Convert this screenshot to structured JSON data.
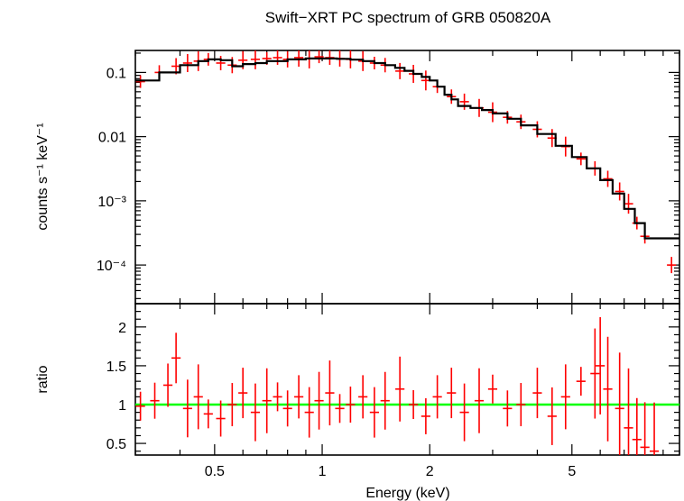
{
  "chart_data": [
    {
      "type": "scatter",
      "title": "Swift−XRT PC spectrum of GRB 050820A",
      "ylabel": "counts s⁻¹ keV⁻¹",
      "xscale": "log",
      "yscale": "log",
      "xlim": [
        0.3,
        10
      ],
      "ylim": [
        2.5e-05,
        0.22
      ],
      "yticks": [
        {
          "value": 0.1,
          "label": "0.1"
        },
        {
          "value": 0.01,
          "label": "0.01"
        },
        {
          "value": 0.001,
          "label": "10⁻³"
        },
        {
          "value": 0.0001,
          "label": "10⁻⁴"
        }
      ],
      "colors": {
        "data": "#ff0000",
        "model": "#000000"
      },
      "series": [
        {
          "kind": "data-with-errorbars",
          "x": [
            0.31,
            0.35,
            0.39,
            0.42,
            0.45,
            0.48,
            0.52,
            0.56,
            0.6,
            0.65,
            0.7,
            0.75,
            0.8,
            0.86,
            0.92,
            0.98,
            1.05,
            1.12,
            1.2,
            1.3,
            1.4,
            1.5,
            1.65,
            1.8,
            1.95,
            2.1,
            2.3,
            2.5,
            2.75,
            3.0,
            3.3,
            3.6,
            4.0,
            4.4,
            4.8,
            5.3,
            5.8,
            6.3,
            6.8,
            7.2,
            7.6,
            8.0,
            9.5
          ],
          "y": [
            0.072,
            0.1,
            0.125,
            0.14,
            0.15,
            0.16,
            0.14,
            0.13,
            0.155,
            0.16,
            0.165,
            0.17,
            0.16,
            0.17,
            0.165,
            0.175,
            0.17,
            0.165,
            0.16,
            0.15,
            0.14,
            0.13,
            0.105,
            0.095,
            0.075,
            0.06,
            0.042,
            0.035,
            0.028,
            0.024,
            0.02,
            0.017,
            0.013,
            0.0095,
            0.007,
            0.0045,
            0.0032,
            0.0022,
            0.0014,
            0.0009,
            0.00045,
            0.00028,
            0.0001
          ]
        },
        {
          "kind": "model-step",
          "x": [
            0.3,
            0.35,
            0.4,
            0.45,
            0.48,
            0.52,
            0.56,
            0.6,
            0.65,
            0.7,
            0.8,
            0.9,
            1.0,
            1.1,
            1.2,
            1.3,
            1.4,
            1.5,
            1.6,
            1.7,
            1.8,
            1.9,
            2.0,
            2.1,
            2.2,
            2.3,
            2.4,
            2.6,
            2.8,
            3.0,
            3.3,
            3.6,
            4.0,
            4.5,
            5.0,
            5.5,
            6.0,
            6.5,
            7.0,
            7.5,
            8.0,
            8.5,
            9.0,
            10.0
          ],
          "y": [
            0.075,
            0.1,
            0.13,
            0.15,
            0.16,
            0.155,
            0.125,
            0.135,
            0.14,
            0.15,
            0.16,
            0.165,
            0.165,
            0.163,
            0.158,
            0.15,
            0.14,
            0.13,
            0.118,
            0.106,
            0.095,
            0.085,
            0.075,
            0.06,
            0.045,
            0.038,
            0.03,
            0.028,
            0.026,
            0.023,
            0.019,
            0.015,
            0.011,
            0.0072,
            0.0048,
            0.0032,
            0.0021,
            0.0013,
            0.00075,
            0.00045,
            0.00026,
            0.00026,
            0.00026,
            0.00026
          ]
        }
      ]
    },
    {
      "type": "scatter",
      "title": "",
      "xlabel": "Energy (keV)",
      "ylabel": "ratio",
      "xscale": "log",
      "yscale": "linear",
      "xlim": [
        0.3,
        10
      ],
      "ylim": [
        0.35,
        2.3
      ],
      "xticks": [
        {
          "value": 0.5,
          "label": "0.5"
        },
        {
          "value": 1,
          "label": "1"
        },
        {
          "value": 2,
          "label": "2"
        },
        {
          "value": 5,
          "label": "5"
        }
      ],
      "yticks": [
        {
          "value": 0.5,
          "label": "0.5"
        },
        {
          "value": 1,
          "label": "1"
        },
        {
          "value": 1.5,
          "label": "1.5"
        },
        {
          "value": 2,
          "label": "2"
        }
      ],
      "reference_line": {
        "y": 1,
        "color": "#00ff00"
      },
      "colors": {
        "data": "#ff0000"
      },
      "series": [
        {
          "kind": "data-with-errorbars",
          "x": [
            0.31,
            0.34,
            0.37,
            0.39,
            0.42,
            0.45,
            0.48,
            0.52,
            0.56,
            0.6,
            0.65,
            0.7,
            0.75,
            0.8,
            0.86,
            0.92,
            0.98,
            1.05,
            1.12,
            1.2,
            1.3,
            1.4,
            1.5,
            1.65,
            1.8,
            1.95,
            2.1,
            2.3,
            2.5,
            2.75,
            3.0,
            3.3,
            3.6,
            4.0,
            4.4,
            4.8,
            5.3,
            5.8,
            6.0,
            6.3,
            6.8,
            7.2,
            7.6,
            8.0,
            8.5
          ],
          "y": [
            0.98,
            1.05,
            1.25,
            1.6,
            0.95,
            1.1,
            0.88,
            0.82,
            1.0,
            1.15,
            0.9,
            1.05,
            1.1,
            0.95,
            1.1,
            0.9,
            1.05,
            1.15,
            0.95,
            1.0,
            1.1,
            0.9,
            1.05,
            1.2,
            1.0,
            0.85,
            1.1,
            1.15,
            0.9,
            1.05,
            1.2,
            0.95,
            1.0,
            1.15,
            0.85,
            1.1,
            1.3,
            1.4,
            1.5,
            1.2,
            0.95,
            0.7,
            0.55,
            0.45,
            0.4
          ]
        }
      ]
    }
  ]
}
